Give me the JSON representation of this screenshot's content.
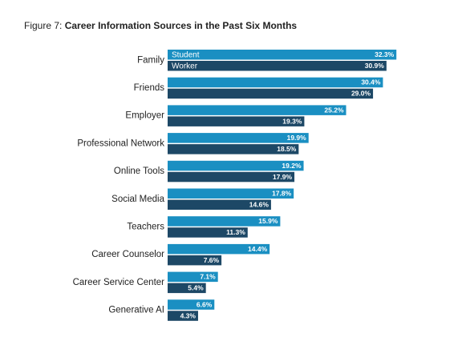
{
  "chart_data": {
    "type": "bar",
    "orientation": "horizontal",
    "figure_label": "Figure 7:",
    "title": "Career Information Sources in the Past Six Months",
    "categories": [
      "Family",
      "Friends",
      "Employer",
      "Professional Network",
      "Online Tools",
      "Social Media",
      "Teachers",
      "Career Counselor",
      "Career Service Center",
      "Generative AI"
    ],
    "series": [
      {
        "name": "Student",
        "color": "#1a8fc2",
        "values": [
          32.3,
          30.4,
          25.2,
          19.9,
          19.2,
          17.8,
          15.9,
          14.4,
          7.1,
          6.6
        ],
        "value_labels": [
          "32.3%",
          "30.4%",
          "25.2%",
          "19.9%",
          "19.2%",
          "17.8%",
          "15.9%",
          "14.4%",
          "7.1%",
          "6.6%"
        ]
      },
      {
        "name": "Worker",
        "color": "#1d4866",
        "values": [
          30.9,
          29.0,
          19.3,
          18.5,
          17.9,
          14.6,
          11.3,
          7.6,
          5.4,
          4.3
        ],
        "value_labels": [
          "30.9%",
          "29.0%",
          "19.3%",
          "18.5%",
          "17.9%",
          "14.6%",
          "11.3%",
          "7.6%",
          "5.4%",
          "4.3%"
        ]
      }
    ]
  }
}
